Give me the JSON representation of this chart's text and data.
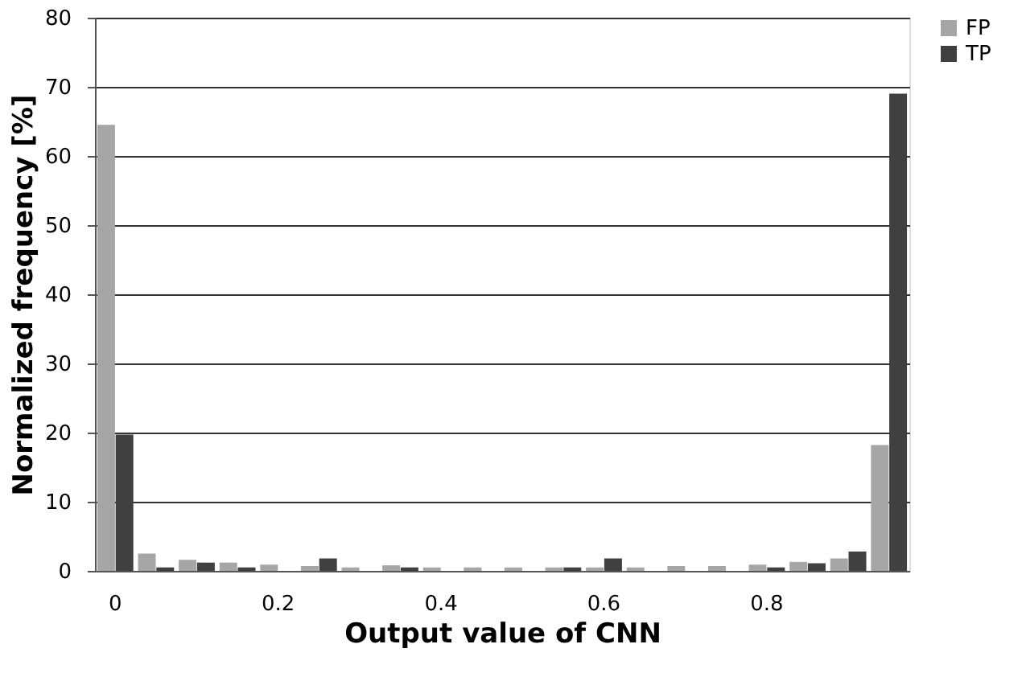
{
  "chart_data": {
    "type": "bar",
    "xlabel": "Output value of CNN",
    "ylabel": "Normalized frequency [%]",
    "categories": [
      "0",
      null,
      null,
      null,
      "0.2",
      null,
      null,
      null,
      "0.4",
      null,
      null,
      null,
      "0.6",
      null,
      null,
      null,
      "0.8",
      null,
      null,
      null
    ],
    "series": [
      {
        "name": "FP",
        "color": "#a6a6a6",
        "values": [
          64.5,
          2.5,
          1.6,
          1.2,
          0.9,
          0.7,
          0.5,
          0.8,
          0.5,
          0.5,
          0.5,
          0.5,
          0.5,
          0.5,
          0.7,
          0.7,
          0.9,
          1.3,
          1.8,
          18.2
        ]
      },
      {
        "name": "TP",
        "color": "#404040",
        "values": [
          19.7,
          0.5,
          1.2,
          0.5,
          0,
          1.8,
          0,
          0.5,
          0,
          0,
          0,
          0.5,
          1.8,
          0,
          0,
          0,
          0.5,
          1.1,
          2.8,
          69
        ]
      }
    ],
    "ylim": [
      0,
      80
    ],
    "yticks": [
      0,
      10,
      20,
      30,
      40,
      50,
      60,
      70,
      80
    ],
    "grid": "y",
    "legend": "right"
  }
}
